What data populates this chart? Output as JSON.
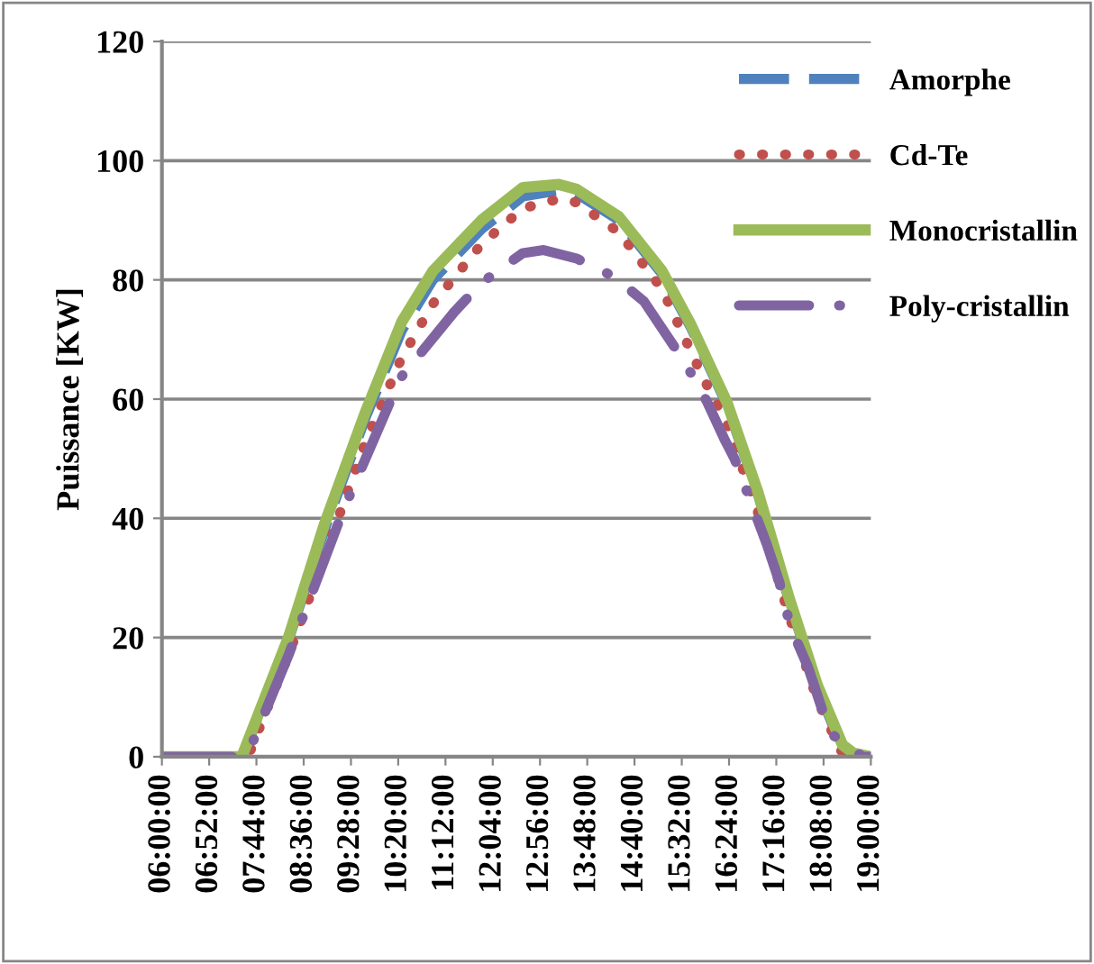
{
  "chart_data": {
    "type": "line",
    "ylabel": "Puissance [KW]",
    "ylim": [
      0,
      120
    ],
    "yticks": [
      0,
      20,
      40,
      60,
      80,
      100,
      120
    ],
    "xlim": [
      6,
      19
    ],
    "xticks": [
      {
        "value": 6,
        "label": "06:00:00"
      },
      {
        "value": 6.8667,
        "label": "06:52:00"
      },
      {
        "value": 7.7333,
        "label": "07:44:00"
      },
      {
        "value": 8.6,
        "label": "08:36:00"
      },
      {
        "value": 9.4667,
        "label": "09:28:00"
      },
      {
        "value": 10.3333,
        "label": "10:20:00"
      },
      {
        "value": 11.2,
        "label": "11:12:00"
      },
      {
        "value": 12.0667,
        "label": "12:04:00"
      },
      {
        "value": 12.9333,
        "label": "12:56:00"
      },
      {
        "value": 13.8,
        "label": "13:48:00"
      },
      {
        "value": 14.6667,
        "label": "14:40:00"
      },
      {
        "value": 15.5333,
        "label": "15:32:00"
      },
      {
        "value": 16.4,
        "label": "16:24:00"
      },
      {
        "value": 17.2667,
        "label": "17:16:00"
      },
      {
        "value": 18.1333,
        "label": "18:08:00"
      },
      {
        "value": 19,
        "label": "19:00:00"
      }
    ],
    "grid": "y",
    "legend": "top right",
    "series": [
      {
        "name": "Amorphe",
        "color": "#4f81bd",
        "line_style": "dashed",
        "x": [
          6,
          7.45,
          7.5,
          8.32,
          8.98,
          9.74,
          10.4,
          10.97,
          11.86,
          12.62,
          13.28,
          13.6,
          14.38,
          15.17,
          15.7,
          16.36,
          16.93,
          17.49,
          18.02,
          18.45,
          18.65,
          19
        ],
        "values": [
          0,
          0,
          0.5,
          19.5,
          38,
          57,
          71.5,
          80,
          88.5,
          94,
          95,
          94.5,
          90,
          81,
          72,
          59,
          44,
          26.5,
          11.5,
          2,
          0,
          0
        ]
      },
      {
        "name": "Cd-Te",
        "color": "#c0504d",
        "line_style": "dotted",
        "x": [
          6,
          7.5,
          7.6,
          8.32,
          9.31,
          9.74,
          10.4,
          10.97,
          11.86,
          12.62,
          13.28,
          13.6,
          14.38,
          15.17,
          15.93,
          16.36,
          16.93,
          17.49,
          18.02,
          18.45,
          18.7,
          19
        ],
        "values": [
          0,
          0,
          0.5,
          17,
          42,
          53,
          67,
          76,
          86,
          92,
          93.6,
          93,
          88,
          78.5,
          63.5,
          56,
          41,
          24,
          9.5,
          1,
          0,
          0
        ]
      },
      {
        "name": "Monocristallin",
        "color": "#9bbb59",
        "line_style": "solid",
        "x": [
          6,
          7.45,
          7.49,
          8.32,
          8.98,
          9.74,
          10.4,
          10.97,
          11.86,
          12.62,
          13.28,
          13.6,
          14.38,
          15.17,
          15.7,
          16.36,
          16.93,
          17.49,
          18.02,
          18.48,
          18.68,
          19
        ],
        "values": [
          0,
          0,
          0.6,
          20,
          39,
          58,
          73,
          81.5,
          90,
          95.5,
          96,
          95.2,
          90.6,
          81.5,
          72.5,
          59.5,
          44.4,
          27,
          12,
          2,
          0.6,
          0
        ]
      },
      {
        "name": "Poly-cristallin",
        "color": "#8064a2",
        "line_style": "dashdot",
        "x": [
          6,
          7.4,
          7.6,
          8.32,
          9.31,
          10.37,
          11.36,
          11.86,
          12.62,
          13.0,
          13.6,
          14.28,
          14.84,
          15.6,
          16.0,
          16.33,
          16.5,
          17.09,
          17.32,
          17.52,
          17.85,
          18.25,
          18.85,
          19
        ],
        "values": [
          0,
          0,
          1,
          17,
          41,
          63.5,
          74.6,
          79.5,
          84.5,
          85,
          83.6,
          80.6,
          76.4,
          66,
          59.5,
          53,
          50,
          35.7,
          29.4,
          22,
          15,
          4,
          0,
          0
        ]
      }
    ]
  }
}
